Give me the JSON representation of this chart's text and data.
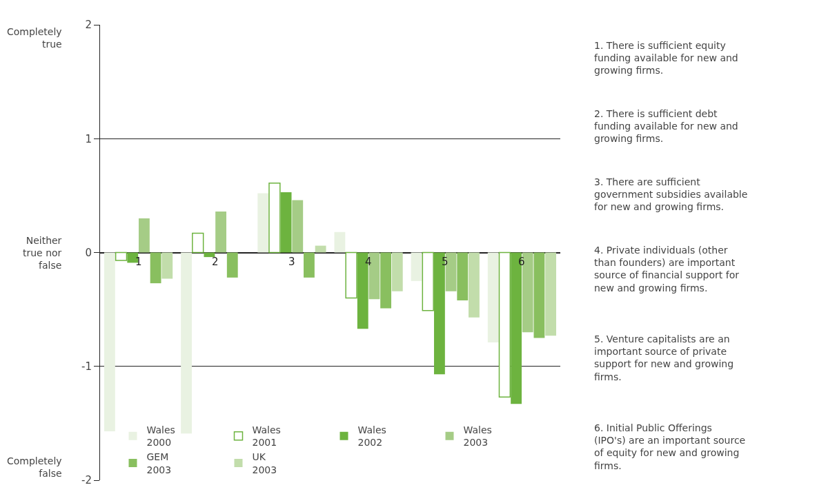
{
  "chart_data": {
    "type": "bar",
    "categories": [
      "1",
      "2",
      "3",
      "4",
      "5",
      "6"
    ],
    "series": [
      {
        "name": "Wales 2000",
        "color": "#e9f2e2",
        "values": [
          -1.57,
          -1.59,
          0.52,
          0.18,
          -0.25,
          -0.79
        ]
      },
      {
        "name": "Wales 2001",
        "color": "#6db33f",
        "values": [
          -0.07,
          0.17,
          0.61,
          -0.4,
          -0.51,
          -1.27
        ]
      },
      {
        "name": "Wales 2002",
        "color": "#6db33f",
        "values": [
          -0.09,
          -0.04,
          0.53,
          -0.67,
          -1.07,
          -1.33
        ]
      },
      {
        "name": "Wales 2003",
        "color": "#a5cc86",
        "values": [
          0.3,
          0.36,
          0.46,
          -0.41,
          -0.34,
          -0.7
        ]
      },
      {
        "name": "GEM 2003",
        "color": "#89bf5f",
        "values": [
          -0.27,
          -0.22,
          -0.22,
          -0.49,
          -0.42,
          -0.75
        ]
      },
      {
        "name": "UK 2003",
        "color": "#c2ddab",
        "values": [
          -0.23,
          null,
          0.06,
          -0.34,
          -0.57,
          -0.73
        ]
      }
    ],
    "ylim": [
      -2,
      2
    ],
    "yticks": [
      2,
      1,
      0,
      -1,
      -2
    ],
    "grid": "y",
    "legend": "bottom",
    "annotations": [
      "Completely true",
      "Neither true nor false",
      "Completely false",
      "1. There is sufficient equity funding available for new and growing firms.",
      "2. There is sufficient debt funding available for new and growing firms.",
      "3. There are sufficient government subsidies available for new and growing firms.",
      "4. Private individuals (other than founders) are important source of financial support for new and growing firms.",
      "5. Venture capitalists are an important source of private support for new and growing firms.",
      "6. Initial Public Offerings (IPO's) are an important source of equity for new and growing firms."
    ]
  }
}
